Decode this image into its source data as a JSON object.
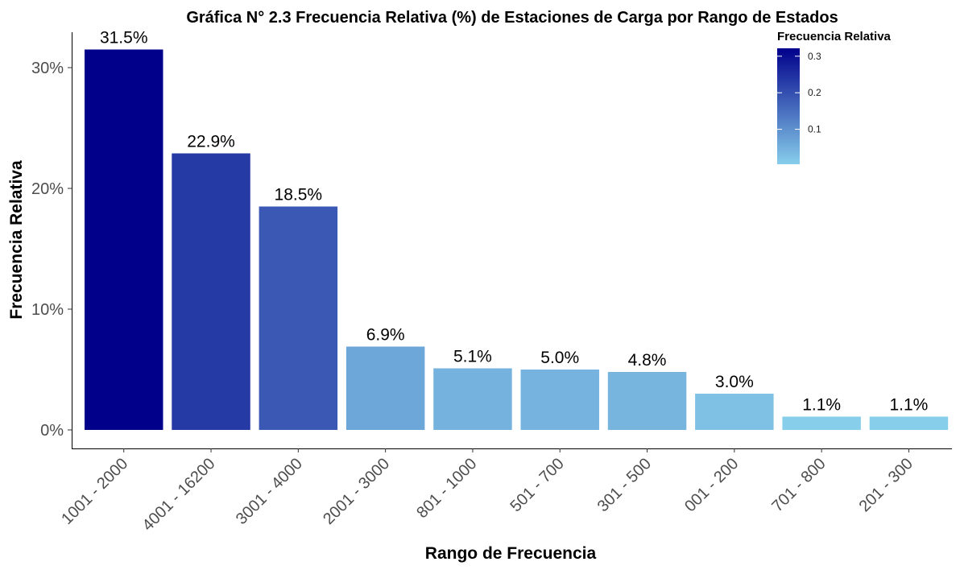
{
  "chart_data": {
    "type": "bar",
    "title": "Gráfica N° 2.3 Frecuencia Relativa (%) de Estaciones de Carga por Rango de Estados",
    "xlabel": "Rango de Frecuencia",
    "ylabel": "Frecuencia Relativa",
    "categories": [
      "1001 - 2000",
      "4001 - 16200",
      "3001 - 4000",
      "2001 - 3000",
      "801 - 1000",
      "501 - 700",
      "301 - 500",
      "001 - 200",
      "701 - 800",
      "201 - 300"
    ],
    "values": [
      0.315,
      0.229,
      0.185,
      0.069,
      0.051,
      0.05,
      0.048,
      0.03,
      0.011,
      0.011
    ],
    "data_labels": [
      "31.5%",
      "22.9%",
      "18.5%",
      "6.9%",
      "5.1%",
      "5.0%",
      "4.8%",
      "3.0%",
      "1.1%",
      "1.1%"
    ],
    "ylim": [
      -0.015,
      0.33
    ],
    "yticks": [
      0,
      0.1,
      0.2,
      0.3
    ],
    "ytick_labels": [
      "0%",
      "10%",
      "20%",
      "30%"
    ],
    "grid": false,
    "legend": {
      "title": "Frecuencia Relativa",
      "position": "top-right",
      "type": "gradient",
      "low_color": "#87CEEB",
      "high_color": "#00008B",
      "range": [
        0.011,
        0.315
      ],
      "ticks": [
        0.1,
        0.2,
        0.3
      ],
      "tick_labels": [
        "0.1",
        "0.2",
        "0.3"
      ]
    }
  }
}
